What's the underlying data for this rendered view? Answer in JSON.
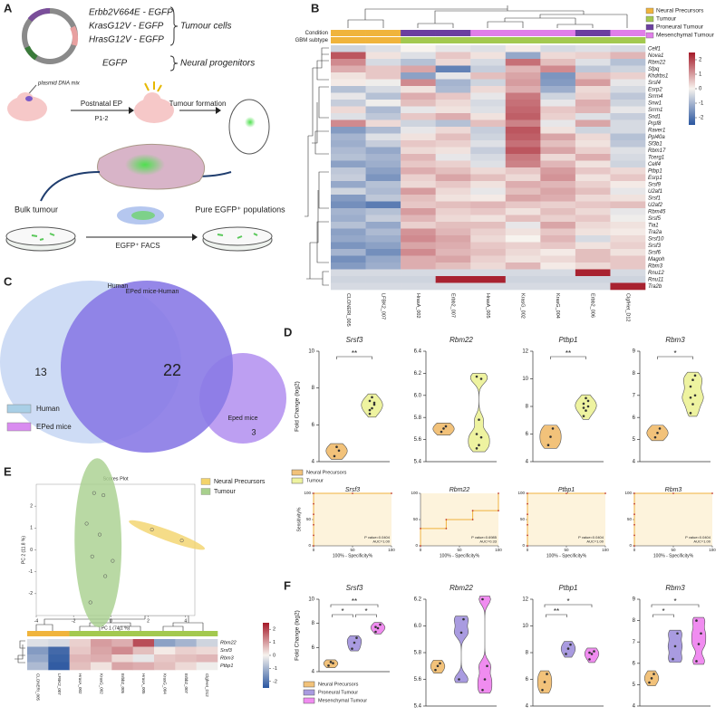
{
  "panel_labels": [
    "A",
    "B",
    "C",
    "D",
    "E",
    "F"
  ],
  "diagram": {
    "constructs": [
      "Erbb2V664E - EGFP",
      "KrasG12V - EGFP",
      "HrasG12V - EGFP"
    ],
    "tumour_cells": "Tumour cells",
    "egfp": "EGFP",
    "neural_progenitors": "Neural progenitors",
    "plasmid": "plasmid DNA mix",
    "postnatal_ep": "Postnatal EP",
    "p12": "P1-2",
    "tumour_formation": "Tumour formation",
    "bulk_tumour": "Bulk tumour",
    "facs": "EGFP⁺ FACS",
    "pure": "Pure EGFP⁺ populations"
  },
  "venn": {
    "labels": [
      "Human",
      "EPed mice-Human",
      "Eped mice"
    ],
    "counts": [
      13,
      22,
      3
    ],
    "legend": [
      "Human",
      "EPed mice"
    ]
  },
  "chart_data": [
    {
      "type": "heatmap",
      "legend": [
        {
          "name": "Neural Precursors",
          "color": "#f0b43c"
        },
        {
          "name": "Tumour",
          "color": "#a3c94f"
        },
        {
          "name": "Proneural Tumour",
          "color": "#6b3fa0"
        },
        {
          "name": "Mesenchymal Tumour",
          "color": "#e07ee8"
        }
      ],
      "annotation_rows": [
        {
          "label": "Condition",
          "colors": [
            "#f0b43c",
            "#f0b43c",
            "#6b3fa0",
            "#6b3fa0",
            "#e07ee8",
            "#e07ee8",
            "#e07ee8",
            "#6b3fa0",
            "#e07ee8"
          ]
        },
        {
          "label": "GBM subtype",
          "colors": [
            "#f0b43c",
            "#f0b43c",
            "#a3c94f",
            "#a3c94f",
            "#a3c94f",
            "#a3c94f",
            "#a3c94f",
            "#a3c94f",
            "#a3c94f"
          ]
        }
      ],
      "columns": [
        "CLONERI_005",
        "LFBK2_007",
        "HrasA_002",
        "Erbb2_007",
        "HrasA_005",
        "KrasG_002",
        "KrasG_004",
        "Erbb2_006",
        "ClgfHet_D12"
      ],
      "rows": [
        "Celf1",
        "Nova1",
        "Rbm22",
        "Sfpq",
        "Khdrbs1",
        "Srsf4",
        "Esrp2",
        "Srrm4",
        "Snw1",
        "Srrm1",
        "Snd1",
        "Prpf8",
        "Raver1",
        "Ppl40a",
        "Sf3b1",
        "Rbm17",
        "Tcerg1",
        "Celf4",
        "Ptbp1",
        "Esrp1",
        "Srsf9",
        "U2af1",
        "Srsf1",
        "U2af2",
        "Rbm45",
        "Srsf5",
        "Tia1",
        "Tra2a",
        "Srsf10",
        "Srsf3",
        "Srsf6",
        "Magoh",
        "Rbm3",
        "Rnu12",
        "Rnu11",
        "Tra2b"
      ],
      "values": [
        [
          -0.5,
          -0.3,
          0,
          -0.2,
          -0.3,
          0.1,
          -0.4,
          -0.3,
          -0.4
        ],
        [
          1.8,
          0.2,
          -0.3,
          0.5,
          0.2,
          -1.2,
          0.3,
          0.4,
          0.7
        ],
        [
          1.2,
          -0.4,
          -0.8,
          0.3,
          -0.4,
          1.5,
          0.6,
          -0.3,
          -0.8
        ],
        [
          0.8,
          0.5,
          0.9,
          -1.8,
          -0.6,
          0.7,
          1.2,
          -0.7,
          -0.5
        ],
        [
          0.2,
          0.5,
          -1.3,
          -0.2,
          0.6,
          0.9,
          -1.5,
          0.6,
          0.4
        ],
        [
          0.1,
          -0.1,
          1.2,
          -1,
          -0.5,
          1,
          -1.4,
          1,
          -0.2
        ],
        [
          -0.8,
          -0.4,
          0.2,
          -0.9,
          0.3,
          0.8,
          -1.1,
          0.3,
          -0.4
        ],
        [
          -0.2,
          -0.8,
          0.8,
          0.5,
          -0.2,
          1.4,
          -0.5,
          0.4,
          -0.7
        ],
        [
          -0.6,
          -0.1,
          0.6,
          0.3,
          -0.4,
          1.5,
          -0.2,
          0.8,
          -0.5
        ],
        [
          0.3,
          -0.9,
          -0.2,
          0.2,
          -0.3,
          1.6,
          0.5,
          0.7,
          -0.2
        ],
        [
          -0.3,
          -0.7,
          0.5,
          0.8,
          0.2,
          1.7,
          0.4,
          -0.3,
          -0.6
        ],
        [
          1.2,
          0.3,
          -0.5,
          -0.8,
          0.6,
          1.3,
          -0.2,
          0.9,
          -0.4
        ],
        [
          -1.4,
          -0.9,
          -0.2,
          0.3,
          -0.6,
          1.8,
          0.2,
          -0.5,
          -0.4
        ],
        [
          -1,
          -0.3,
          0.2,
          0.6,
          -0.5,
          1.7,
          0.9,
          0.3,
          -0.8
        ],
        [
          -1.1,
          -0.6,
          0.5,
          0.4,
          -0.3,
          1.5,
          0.6,
          0.2,
          -0.7
        ],
        [
          -0.9,
          -1.2,
          0.3,
          0.2,
          -0.6,
          1.8,
          0.9,
          0.4,
          -0.3
        ],
        [
          -0.8,
          -1,
          0.7,
          -0.2,
          -0.4,
          1.4,
          0.3,
          0.8,
          -0.4
        ],
        [
          -1.3,
          -1.1,
          0.5,
          0.4,
          -0.3,
          1.3,
          0.7,
          0.2,
          -0.5
        ],
        [
          -0.7,
          -1.3,
          0.8,
          0.6,
          0.3,
          0.5,
          1,
          0.5,
          0.3
        ],
        [
          -0.6,
          -1.5,
          0.4,
          0.9,
          0.6,
          0.3,
          1.1,
          0.2,
          0.5
        ],
        [
          -1.2,
          -0.8,
          0.3,
          0.5,
          0.2,
          0.8,
          0.7,
          0.4,
          0.1
        ],
        [
          -0.5,
          -0.9,
          1,
          0.3,
          -0.2,
          0.6,
          0.9,
          0.6,
          -0.2
        ],
        [
          -1.4,
          -0.7,
          0.6,
          0.2,
          0.1,
          0.9,
          0.8,
          0.3,
          0.2
        ],
        [
          -1.6,
          -1.9,
          0.5,
          0.6,
          0.7,
          0.5,
          0.4,
          0.5,
          0.6
        ],
        [
          -1,
          -0.8,
          1,
          0.4,
          0.5,
          0.2,
          0.6,
          0.3,
          -0.2
        ],
        [
          -1.1,
          -0.6,
          0.7,
          0.3,
          0.2,
          0.6,
          0.4,
          0.5,
          -0.1
        ],
        [
          -0.8,
          -1.2,
          0.4,
          0.6,
          0.6,
          -0.2,
          0.9,
          0.3,
          0.2
        ],
        [
          -1.3,
          -0.9,
          1.1,
          0.7,
          0.4,
          0.2,
          0.5,
          0.2,
          0.1
        ],
        [
          -1.2,
          -1.1,
          1.2,
          0.9,
          0.3,
          0,
          0.7,
          -0.4,
          0.3
        ],
        [
          -1.5,
          -1.3,
          0.9,
          0.8,
          0.5,
          0.4,
          0.5,
          0.2,
          0.4
        ],
        [
          -1,
          -1.6,
          1.2,
          0.7,
          0.6,
          0.3,
          0.1,
          0.6,
          0.2
        ],
        [
          -1.6,
          -1.2,
          0.8,
          0.9,
          0.4,
          0.2,
          0.3,
          0.6,
          0.5
        ],
        [
          -1.4,
          -1.1,
          0.8,
          0.6,
          0.3,
          0.7,
          0.1,
          0.3,
          0.5
        ],
        [
          -0.4,
          -0.4,
          -0.4,
          -0.4,
          -0.4,
          -0.4,
          -0.4,
          2.4,
          -0.4
        ],
        [
          -0.5,
          -0.5,
          -0.5,
          2.4,
          2.4,
          -0.5,
          -0.5,
          -0.5,
          -0.5
        ],
        [
          -0.4,
          -0.4,
          -0.4,
          -0.4,
          -0.4,
          -0.4,
          -0.4,
          -0.4,
          2.4
        ]
      ],
      "clim": [
        -2.5,
        2.5
      ],
      "colorbar_ticks": [
        2,
        1,
        0,
        -1,
        -2
      ]
    },
    {
      "type": "violin",
      "ylabel": "Fold Change (log2)",
      "legend": [
        {
          "name": "Neural Precursors",
          "color": "#f2c27a"
        },
        {
          "name": "Tumour",
          "color": "#eef3a0"
        }
      ],
      "panels": [
        {
          "title": "Srsf3",
          "ylim": [
            4,
            10
          ],
          "yticks": [
            4,
            6,
            8,
            10
          ],
          "groups": [
            [
              4.3,
              4.8,
              4.6
            ],
            [
              6.6,
              6.9,
              7.1,
              7.3,
              7.5,
              7.2,
              6.8
            ]
          ],
          "significance": [
            "**"
          ]
        },
        {
          "title": "Rbm22",
          "ylim": [
            5.4,
            6.4
          ],
          "yticks": [
            5.4,
            5.6,
            5.8,
            {
              "value": 6,
              "label": "6.0"
            },
            6.2,
            6.4
          ],
          "groups": [
            [
              5.67,
              5.7,
              5.72
            ],
            [
              5.52,
              5.55,
              5.62,
              5.65,
              5.78,
              6.15,
              6.17
            ]
          ],
          "significance": []
        },
        {
          "title": "Ptbp1",
          "ylim": [
            4,
            12
          ],
          "yticks": [
            4,
            6,
            8,
            10,
            12
          ],
          "groups": [
            [
              5.2,
              5.8,
              6.4
            ],
            [
              7.3,
              7.7,
              8,
              8.2,
              8.6,
              8.4,
              7.9
            ]
          ],
          "significance": [
            "**"
          ]
        },
        {
          "title": "Rbm3",
          "ylim": [
            4,
            9
          ],
          "yticks": [
            4,
            5,
            6,
            7,
            8,
            9
          ],
          "groups": [
            [
              5.1,
              5.3,
              5.5
            ],
            [
              6.2,
              6.6,
              7,
              7.4,
              7.7,
              7.9,
              6.9
            ]
          ],
          "significance": [
            "*"
          ]
        }
      ]
    },
    {
      "type": "roc",
      "xlabel": "100% - Specificity%",
      "ylabel": "Sensitivity%",
      "xlim": [
        0,
        100
      ],
      "ylim": [
        0,
        100
      ],
      "xticks": [
        0,
        50,
        100
      ],
      "yticks": [
        0,
        50,
        100
      ],
      "color": "#f0b23c",
      "fill_color": "#fdf3dc",
      "panels": [
        {
          "title": "Srsf3",
          "x": [
            0,
            0,
            0,
            0,
            0,
            0,
            50,
            100
          ],
          "y": [
            0,
            20,
            40,
            60,
            80,
            100,
            100,
            100
          ],
          "annotation": [
            "P value=0.0404",
            "AUC=1.00"
          ]
        },
        {
          "title": "Rbm22",
          "x": [
            0,
            0,
            33,
            33,
            67,
            67,
            100,
            100
          ],
          "y": [
            0,
            33,
            33,
            50,
            50,
            67,
            67,
            100
          ],
          "annotation": [
            "P value=0.6985",
            "AUC=0.33"
          ]
        },
        {
          "title": "Ptbp1",
          "x": [
            0,
            0,
            0,
            0,
            0,
            0,
            50,
            100
          ],
          "y": [
            0,
            20,
            40,
            60,
            80,
            100,
            100,
            100
          ],
          "annotation": [
            "P value=0.0404",
            "AUC=1.00"
          ]
        },
        {
          "title": "Rbm3",
          "x": [
            0,
            0,
            0,
            0,
            0,
            0,
            50,
            100
          ],
          "y": [
            0,
            20,
            40,
            60,
            80,
            100,
            100,
            100
          ],
          "annotation": [
            "P value=0.0404",
            "AUC=1.00"
          ]
        }
      ]
    },
    {
      "type": "scatter",
      "title": "Scores Plot",
      "xlabel": "PC 1 (74.1 %)",
      "ylabel": "PC 2 (11.8 %)",
      "xlim": [
        -4,
        4.5
      ],
      "ylim": [
        -3,
        3
      ],
      "xticks": [
        -4,
        -2,
        0,
        2,
        4
      ],
      "yticks": [
        -2,
        -1,
        0,
        1,
        2
      ],
      "series": [
        {
          "name": "Neural Precursors",
          "color": "#f3d36a",
          "x": [
            2.2,
            3.8
          ],
          "y": [
            0.93,
            0.43
          ]
        },
        {
          "name": "Tumour",
          "color": "#a8d08d",
          "x": [
            -0.9,
            -0.4,
            -1.3,
            -0.6,
            -1,
            -0.3,
            0.1,
            -1.1
          ],
          "y": [
            2.6,
            2.5,
            1.2,
            0.7,
            -0.3,
            -1.2,
            -0.5,
            -2.4
          ]
        }
      ]
    },
    {
      "type": "heatmap",
      "annotation_colors": [
        "#f0b43c",
        "#f0b43c",
        "#a3c94f",
        "#a3c94f",
        "#a3c94f",
        "#a3c94f",
        "#a3c94f",
        "#a3c94f",
        "#a3c94f"
      ],
      "columns": [
        "CLONERI_005",
        "LFBK2_007",
        "HrasA_002",
        "KrasG_002",
        "Erbb2_005",
        "HrasA_005",
        "KrasG_004",
        "Erbb2_007",
        "ClgfHet_D12"
      ],
      "rows": [
        "Rbm22",
        "Srsf3",
        "Rbm3",
        "Ptbp1"
      ],
      "values": [
        [
          -0.3,
          -0.4,
          0.4,
          1,
          0.8,
          1.9,
          -1.3,
          -1,
          -0.5
        ],
        [
          -1.4,
          -2.2,
          0.5,
          0.9,
          1.2,
          0.6,
          0.1,
          0.4,
          0.3
        ],
        [
          -1.2,
          -2.3,
          0.7,
          0.8,
          0.3,
          -0.2,
          0.5,
          0.6,
          0.7
        ],
        [
          -0.9,
          -2.4,
          0.6,
          0.2,
          0.9,
          0.8,
          0.6,
          0.3,
          -0.1
        ]
      ],
      "clim": [
        -2.5,
        2.5
      ],
      "colorbar_ticks": [
        2,
        1,
        0,
        -1,
        -2
      ]
    },
    {
      "type": "violin",
      "ylabel": "Fold Change (log2)",
      "legend": [
        {
          "name": "Neural Precursors",
          "color": "#f2c27a"
        },
        {
          "name": "Proneural Tumour",
          "color": "#a99be0"
        },
        {
          "name": "Mesenchymal Tumour",
          "color": "#f08cf0"
        }
      ],
      "panels": [
        {
          "title": "Srsf3",
          "ylim": [
            4,
            10
          ],
          "yticks": [
            4,
            6,
            8,
            10
          ],
          "groups": [
            [
              4.5,
              4.8,
              4.7
            ],
            [
              5.9,
              6.4,
              6.8
            ],
            [
              7.3,
              7.6,
              7.9,
              7.7
            ]
          ],
          "significance": [
            "*",
            "**",
            "*"
          ]
        },
        {
          "title": "Rbm22",
          "ylim": [
            5.4,
            6.2
          ],
          "yticks": [
            5.4,
            5.6,
            5.8,
            {
              "value": 6,
              "label": "6.0"
            },
            6.2
          ],
          "groups": [
            [
              5.67,
              5.7,
              5.72
            ],
            [
              5.6,
              5.95,
              6.05
            ],
            [
              5.52,
              5.6,
              5.7,
              6.2
            ]
          ],
          "significance": []
        },
        {
          "title": "Ptbp1",
          "ylim": [
            4,
            12
          ],
          "yticks": [
            4,
            6,
            8,
            10,
            12
          ],
          "groups": [
            [
              5.2,
              5.8,
              6.4
            ],
            [
              7.9,
              8.3,
              8.6
            ],
            [
              7.5,
              7.9,
              8.1,
              8
            ]
          ],
          "significance": [
            "**",
            "*"
          ]
        },
        {
          "title": "Rbm3",
          "ylim": [
            4,
            9
          ],
          "yticks": [
            4,
            5,
            6,
            7,
            8,
            9
          ],
          "groups": [
            [
              5.1,
              5.3,
              5.5
            ],
            [
              6.2,
              6.8,
              7.4
            ],
            [
              6.1,
              6.9,
              7.4,
              8
            ]
          ],
          "significance": [
            "*",
            "*"
          ]
        }
      ]
    }
  ]
}
